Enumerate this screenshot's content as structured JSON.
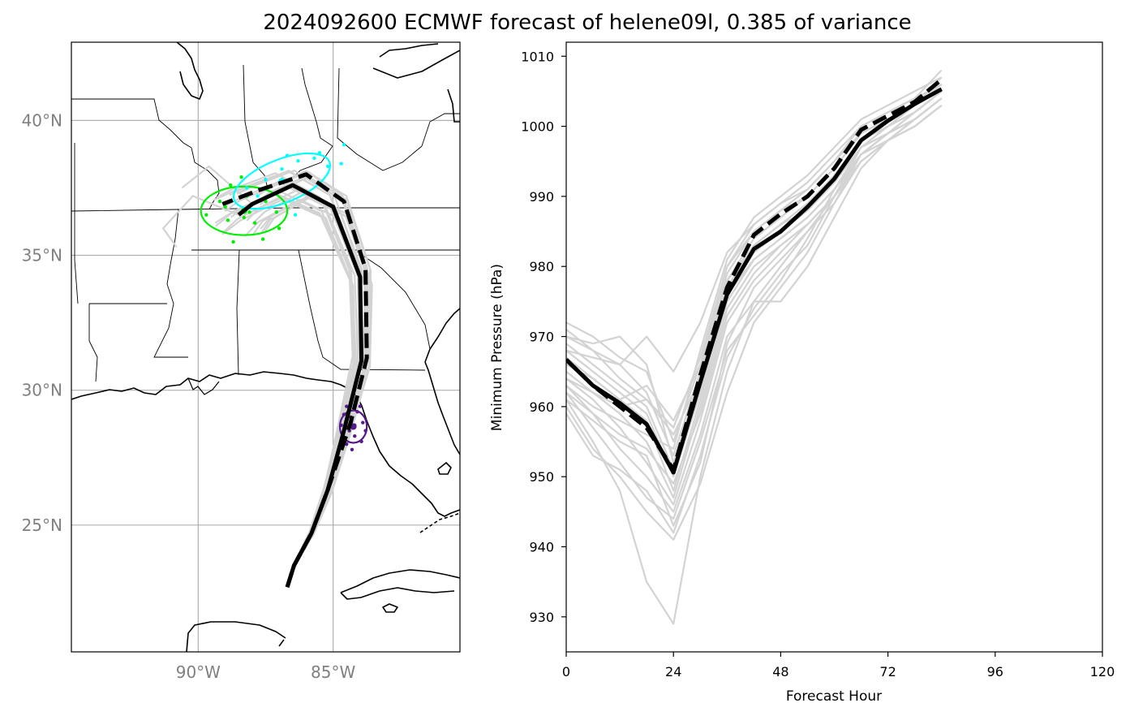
{
  "title": "2024092600 ECMWF forecast of helene09l, 0.385 of variance",
  "colors": {
    "ensemble": "#d3d3d3",
    "mean": "#000000",
    "cluster_green": "#00ee00",
    "cluster_cyan": "#00ffff",
    "cluster_purple": "#551a8b",
    "grid": "#b0b0b0"
  },
  "map": {
    "lon_range": [
      -94.7,
      -80.3
    ],
    "lat_range": [
      20.3,
      42.9
    ],
    "lat_ticks": [
      {
        "value": 40,
        "label": "40°N"
      },
      {
        "value": 35,
        "label": "35°N"
      },
      {
        "value": 30,
        "label": "30°N"
      },
      {
        "value": 25,
        "label": "25°N"
      }
    ],
    "lon_ticks": [
      {
        "value": -90,
        "label": "90°W"
      },
      {
        "value": -85,
        "label": "85°W"
      }
    ],
    "mean_track": [
      [
        -86.7,
        22.7
      ],
      [
        -86.45,
        23.5
      ],
      [
        -85.8,
        24.7
      ],
      [
        -85.2,
        26.3
      ],
      [
        -84.6,
        28.5
      ],
      [
        -83.95,
        31.1
      ],
      [
        -84.0,
        34.2
      ],
      [
        -85.0,
        36.8
      ],
      [
        -86.5,
        37.6
      ],
      [
        -88.0,
        36.9
      ],
      [
        -88.5,
        36.5
      ]
    ],
    "control_track": [
      [
        -86.7,
        22.7
      ],
      [
        -86.45,
        23.5
      ],
      [
        -85.8,
        24.7
      ],
      [
        -85.2,
        26.3
      ],
      [
        -84.35,
        28.8
      ],
      [
        -83.75,
        31.2
      ],
      [
        -83.8,
        34.5
      ],
      [
        -84.6,
        37.0
      ],
      [
        -86.0,
        38.0
      ],
      [
        -87.8,
        37.4
      ],
      [
        -89.1,
        36.9
      ]
    ],
    "ellipses": [
      {
        "name": "purple",
        "center": [
          -84.25,
          28.65
        ],
        "width_deg": 1.0,
        "height_deg": 1.2,
        "points": [
          [
            -84.6,
            29.1
          ],
          [
            -84.2,
            28.3
          ],
          [
            -83.9,
            28.8
          ],
          [
            -84.4,
            28.5
          ],
          [
            -84.1,
            29.2
          ],
          [
            -84.5,
            28.0
          ],
          [
            -83.8,
            28.5
          ],
          [
            -84.3,
            27.8
          ],
          [
            -84.7,
            28.7
          ],
          [
            -84.0,
            29.4
          ],
          [
            -84.2,
            28.7
          ],
          [
            -84.5,
            29.4
          ],
          [
            -83.95,
            28.1
          ],
          [
            -84.35,
            29.0
          ]
        ]
      },
      {
        "name": "green",
        "center": [
          -88.3,
          36.65
        ],
        "width_deg": 3.2,
        "height_deg": 1.8,
        "points": [
          [
            -89.7,
            36.5
          ],
          [
            -89.2,
            37.0
          ],
          [
            -88.8,
            37.6
          ],
          [
            -88.2,
            37.2
          ],
          [
            -87.5,
            37.0
          ],
          [
            -87.1,
            36.6
          ],
          [
            -88.9,
            36.3
          ],
          [
            -88.1,
            36.6
          ],
          [
            -87.6,
            35.6
          ],
          [
            -88.7,
            35.5
          ],
          [
            -87.0,
            36.0
          ],
          [
            -88.4,
            37.9
          ],
          [
            -89.0,
            36.8
          ],
          [
            -88.3,
            36.4
          ],
          [
            -87.9,
            36.2
          ]
        ]
      },
      {
        "name": "cyan",
        "center": [
          -86.9,
          37.75
        ],
        "width_deg": 3.8,
        "height_deg": 1.6,
        "tilt_deg": 22,
        "points": [
          [
            -85.5,
            38.8
          ],
          [
            -84.6,
            39.1
          ],
          [
            -86.3,
            38.5
          ],
          [
            -86.9,
            38.2
          ],
          [
            -87.5,
            37.8
          ],
          [
            -87.8,
            37.2
          ],
          [
            -86.0,
            38.0
          ],
          [
            -85.2,
            38.3
          ],
          [
            -86.7,
            38.7
          ],
          [
            -84.7,
            38.4
          ],
          [
            -88.2,
            37.5
          ],
          [
            -86.4,
            36.5
          ],
          [
            -85.7,
            38.6
          ]
        ]
      }
    ]
  },
  "chart_data": {
    "type": "line",
    "title": "2024092600 ECMWF forecast of helene09l, 0.385 of variance",
    "xlabel": "Forecast Hour",
    "ylabel": "Minimum Pressure (hPa)",
    "xlim": [
      0,
      120
    ],
    "ylim": [
      925,
      1012
    ],
    "xticks": [
      0,
      24,
      48,
      72,
      96,
      120
    ],
    "yticks": [
      930,
      940,
      950,
      960,
      970,
      980,
      990,
      1000,
      1010
    ],
    "x": [
      0,
      6,
      12,
      18,
      24,
      30,
      36,
      42,
      48,
      54,
      60,
      66,
      72,
      78,
      84
    ],
    "series": [
      {
        "role": "mean",
        "style": "solid",
        "values": [
          966.7,
          963.0,
          960.5,
          957.5,
          950.6,
          963.5,
          976.0,
          982.5,
          985.0,
          988.5,
          992.5,
          998.0,
          1000.8,
          1003.2,
          1005.3
        ]
      },
      {
        "role": "control",
        "style": "dashed",
        "values": [
          966.7,
          963.0,
          960.0,
          957.0,
          951.0,
          964.5,
          977.0,
          984.5,
          987.5,
          990.0,
          994.0,
          999.5,
          1001.5,
          1003.5,
          1006.7
        ]
      }
    ],
    "ensemble": [
      [
        972.0,
        970.0,
        967.0,
        965.0,
        955.0,
        966.0,
        980.0,
        986.0,
        989.0,
        992.0,
        996.0,
        1000.0,
        1002.0,
        1004.0,
        1008.0
      ],
      [
        971.0,
        968.0,
        966.0,
        962.0,
        953.0,
        965.0,
        979.0,
        985.0,
        988.0,
        991.0,
        995.0,
        999.0,
        1001.0,
        1003.0,
        1007.0
      ],
      [
        970.0,
        969.0,
        970.0,
        966.0,
        952.0,
        964.0,
        978.0,
        984.0,
        987.0,
        990.0,
        994.0,
        999.0,
        1001.0,
        1003.0,
        1006.0
      ],
      [
        969.0,
        966.0,
        963.0,
        960.0,
        951.0,
        963.0,
        977.0,
        983.0,
        986.0,
        989.0,
        993.0,
        998.0,
        1000.0,
        1002.0,
        1005.0
      ],
      [
        968.0,
        965.0,
        962.0,
        959.0,
        950.0,
        962.0,
        976.0,
        982.0,
        985.0,
        988.0,
        992.0,
        997.0,
        999.0,
        1001.0,
        1004.0
      ],
      [
        966.0,
        964.0,
        961.0,
        958.0,
        948.0,
        961.0,
        975.0,
        981.0,
        984.0,
        987.0,
        991.0,
        996.0,
        999.0,
        1001.0,
        1004.0
      ],
      [
        965.0,
        962.0,
        959.0,
        955.0,
        947.0,
        960.0,
        974.0,
        980.0,
        983.0,
        986.0,
        990.0,
        996.0,
        998.0,
        1000.0,
        1003.0
      ],
      [
        964.0,
        961.0,
        957.0,
        952.0,
        946.0,
        958.0,
        972.0,
        978.0,
        982.0,
        986.0,
        990.0,
        995.0,
        998.0,
        1000.0,
        1003.0
      ],
      [
        963.0,
        959.0,
        954.0,
        950.0,
        945.0,
        956.0,
        970.0,
        975.0,
        980.0,
        985.0,
        990.0,
        995.0,
        998.0,
        1001.0,
        1004.0
      ],
      [
        962.0,
        957.0,
        952.0,
        947.0,
        944.0,
        955.0,
        968.0,
        973.0,
        978.0,
        984.0,
        991.0,
        996.0,
        999.0,
        1002.0,
        1005.0
      ],
      [
        961.0,
        955.0,
        948.0,
        935.0,
        929.0,
        950.0,
        965.0,
        975.0,
        975.0,
        980.0,
        987.0,
        994.0,
        998.0,
        1001.0,
        1004.0
      ],
      [
        960.0,
        954.0,
        950.0,
        945.0,
        941.0,
        949.0,
        962.0,
        972.0,
        977.0,
        982.0,
        989.0,
        996.0,
        999.0,
        1002.0,
        1005.0
      ],
      [
        959.0,
        953.0,
        951.0,
        948.0,
        942.0,
        953.0,
        967.0,
        974.0,
        979.0,
        983.0,
        990.0,
        997.0,
        1000.0,
        1003.0,
        1006.0
      ],
      [
        963.0,
        960.0,
        958.0,
        956.0,
        954.0,
        968.0,
        981.0,
        987.0,
        990.0,
        993.0,
        997.0,
        1001.0,
        1003.0,
        1005.0,
        1007.0
      ],
      [
        968.0,
        967.0,
        966.0,
        970.0,
        965.0,
        972.0,
        982.0,
        986.0,
        989.0,
        991.0,
        995.0,
        1000.0,
        1002.0,
        1004.0,
        1006.0
      ],
      [
        967.0,
        964.0,
        961.0,
        963.0,
        958.0,
        966.0,
        978.0,
        983.0,
        986.0,
        988.0,
        992.0,
        998.0,
        1000.0,
        1002.0,
        1005.0
      ],
      [
        964.0,
        962.0,
        960.0,
        961.0,
        956.0,
        964.0,
        976.0,
        981.0,
        984.0,
        987.0,
        991.0,
        997.0,
        999.0,
        1001.0,
        1004.0
      ],
      [
        962.0,
        959.0,
        956.0,
        954.0,
        949.0,
        959.0,
        973.0,
        979.0,
        983.0,
        986.0,
        990.0,
        996.0,
        999.0,
        1001.0,
        1004.0
      ],
      [
        961.0,
        958.0,
        955.0,
        953.0,
        943.0,
        952.0,
        969.0,
        977.0,
        981.0,
        985.0,
        989.0,
        995.0,
        998.0,
        1000.0,
        1003.0
      ],
      [
        970.0,
        968.0,
        964.0,
        961.0,
        957.0,
        967.0,
        980.0,
        985.0,
        988.0,
        990.0,
        994.0,
        999.0,
        1001.0,
        1003.0,
        1006.0
      ]
    ]
  }
}
